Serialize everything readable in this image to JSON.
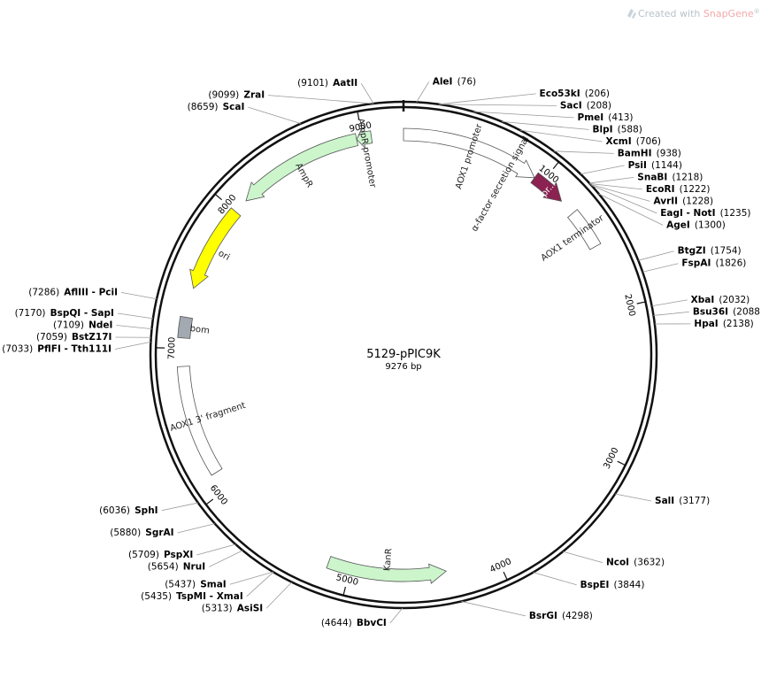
{
  "branding": {
    "created_with": "Created with ",
    "product": "SnapGene",
    "mark": "®",
    "accent_color": "#f3a9a9",
    "text_color": "#b7c2cc"
  },
  "plasmid": {
    "name": "5129-pPIC9K",
    "length_label": "9276 bp",
    "length_bp": 9276
  },
  "ticks": [
    {
      "bp": 1000,
      "label": "1000"
    },
    {
      "bp": 2000,
      "label": "2000"
    },
    {
      "bp": 3000,
      "label": "3000"
    },
    {
      "bp": 4000,
      "label": "4000"
    },
    {
      "bp": 5000,
      "label": "5000"
    },
    {
      "bp": 6000,
      "label": "6000"
    },
    {
      "bp": 7000,
      "label": "7000"
    },
    {
      "bp": 8000,
      "label": "8000"
    },
    {
      "bp": 9000,
      "label": "9000"
    }
  ],
  "sites": [
    {
      "name": "AatII",
      "pos": "(9101)",
      "bp": 9101,
      "side": "left"
    },
    {
      "name": "ZraI",
      "pos": "(9099)",
      "bp": 9099,
      "side": "left"
    },
    {
      "name": "ScaI",
      "pos": "(8659)",
      "bp": 8659,
      "side": "left"
    },
    {
      "name": "AflIII - PciI",
      "pos": "(7286)",
      "bp": 7286,
      "side": "left"
    },
    {
      "name": "BspQI - SapI",
      "pos": "(7170)",
      "bp": 7170,
      "side": "left"
    },
    {
      "name": "NdeI",
      "pos": "(7109)",
      "bp": 7109,
      "side": "left"
    },
    {
      "name": "BstZ17I",
      "pos": "(7059)",
      "bp": 7059,
      "side": "left"
    },
    {
      "name": "PflFI - Tth111I",
      "pos": "(7033)",
      "bp": 7033,
      "side": "left"
    },
    {
      "name": "SphI",
      "pos": "(6036)",
      "bp": 6036,
      "side": "left"
    },
    {
      "name": "SgrAI",
      "pos": "(5880)",
      "bp": 5880,
      "side": "left"
    },
    {
      "name": "PspXI",
      "pos": "(5709)",
      "bp": 5709,
      "side": "left"
    },
    {
      "name": "NruI",
      "pos": "(5654)",
      "bp": 5654,
      "side": "left"
    },
    {
      "name": "SmaI",
      "pos": "(5437)",
      "bp": 5437,
      "side": "left"
    },
    {
      "name": "TspMI - XmaI",
      "pos": "(5435)",
      "bp": 5435,
      "side": "left"
    },
    {
      "name": "AsiSI",
      "pos": "(5313)",
      "bp": 5313,
      "side": "left"
    },
    {
      "name": "BbvCI",
      "pos": "(4644)",
      "bp": 4644,
      "side": "left"
    },
    {
      "name": "AleI",
      "pos": "(76)",
      "bp": 76,
      "side": "right"
    },
    {
      "name": "Eco53kI",
      "pos": "(206)",
      "bp": 206,
      "side": "right"
    },
    {
      "name": "SacI",
      "pos": "(208)",
      "bp": 208,
      "side": "right"
    },
    {
      "name": "PmeI",
      "pos": "(413)",
      "bp": 413,
      "side": "right"
    },
    {
      "name": "BlpI",
      "pos": "(588)",
      "bp": 588,
      "side": "right"
    },
    {
      "name": "XcmI",
      "pos": "(706)",
      "bp": 706,
      "side": "right"
    },
    {
      "name": "BamHI",
      "pos": "(938)",
      "bp": 938,
      "side": "right"
    },
    {
      "name": "PsiI",
      "pos": "(1144)",
      "bp": 1144,
      "side": "right"
    },
    {
      "name": "SnaBI",
      "pos": "(1218)",
      "bp": 1218,
      "side": "right"
    },
    {
      "name": "EcoRI",
      "pos": "(1222)",
      "bp": 1222,
      "side": "right"
    },
    {
      "name": "AvrII",
      "pos": "(1228)",
      "bp": 1228,
      "side": "right"
    },
    {
      "name": "EagI - NotI",
      "pos": "(1235)",
      "bp": 1235,
      "side": "right"
    },
    {
      "name": "AgeI",
      "pos": "(1300)",
      "bp": 1300,
      "side": "right"
    },
    {
      "name": "BtgZI",
      "pos": "(1754)",
      "bp": 1754,
      "side": "right"
    },
    {
      "name": "FspAI",
      "pos": "(1826)",
      "bp": 1826,
      "side": "right"
    },
    {
      "name": "XbaI",
      "pos": "(2032)",
      "bp": 2032,
      "side": "right"
    },
    {
      "name": "Bsu36I",
      "pos": "(2088)",
      "bp": 2088,
      "side": "right"
    },
    {
      "name": "HpaI",
      "pos": "(2138)",
      "bp": 2138,
      "side": "right"
    },
    {
      "name": "SalI",
      "pos": "(3177)",
      "bp": 3177,
      "side": "right"
    },
    {
      "name": "NcoI",
      "pos": "(3632)",
      "bp": 3632,
      "side": "right"
    },
    {
      "name": "BspEI",
      "pos": "(3844)",
      "bp": 3844,
      "side": "right"
    },
    {
      "name": "BsrGI",
      "pos": "(4298)",
      "bp": 4298,
      "side": "right"
    }
  ],
  "features": [
    {
      "label": "AOX1 promoter",
      "start": 0,
      "end": 940,
      "color": "#ffffff",
      "kind": "arrow",
      "dir": "cw"
    },
    {
      "label": "α-factor secretion signal",
      "start": 0,
      "end": 0,
      "color": "#ffffff",
      "kind": "label-only",
      "dir": "cw"
    },
    {
      "label": "pr...",
      "start": 940,
      "end": 1180,
      "color": "#8b2252",
      "kind": "arrow",
      "dir": "cw"
    },
    {
      "label": "AOX1 terminator",
      "start": 1290,
      "end": 1560,
      "color": "#ffffff",
      "kind": "box",
      "dir": "none"
    },
    {
      "label": "KanR",
      "start": 4350,
      "end": 5150,
      "color": "#ccf5cc",
      "kind": "arrow",
      "dir": "ccw"
    },
    {
      "label": "AOX1 3' fragment",
      "start": 6130,
      "end": 6880,
      "color": "#ffffff",
      "kind": "box",
      "dir": "none"
    },
    {
      "label": "bom",
      "start": 7070,
      "end": 7210,
      "color": "#a3a9b0",
      "kind": "box",
      "dir": "none"
    },
    {
      "label": "ori",
      "start": 7410,
      "end": 8000,
      "color": "#ffff00",
      "kind": "arrow",
      "dir": "ccw"
    },
    {
      "label": "AmpR",
      "start": 8100,
      "end": 8960,
      "color": "#ccf5cc",
      "kind": "arrow",
      "dir": "ccw"
    },
    {
      "label": "AmpR promoter",
      "start": 8960,
      "end": 9060,
      "color": "#ccf5cc",
      "kind": "arrow",
      "dir": "ccw"
    }
  ]
}
